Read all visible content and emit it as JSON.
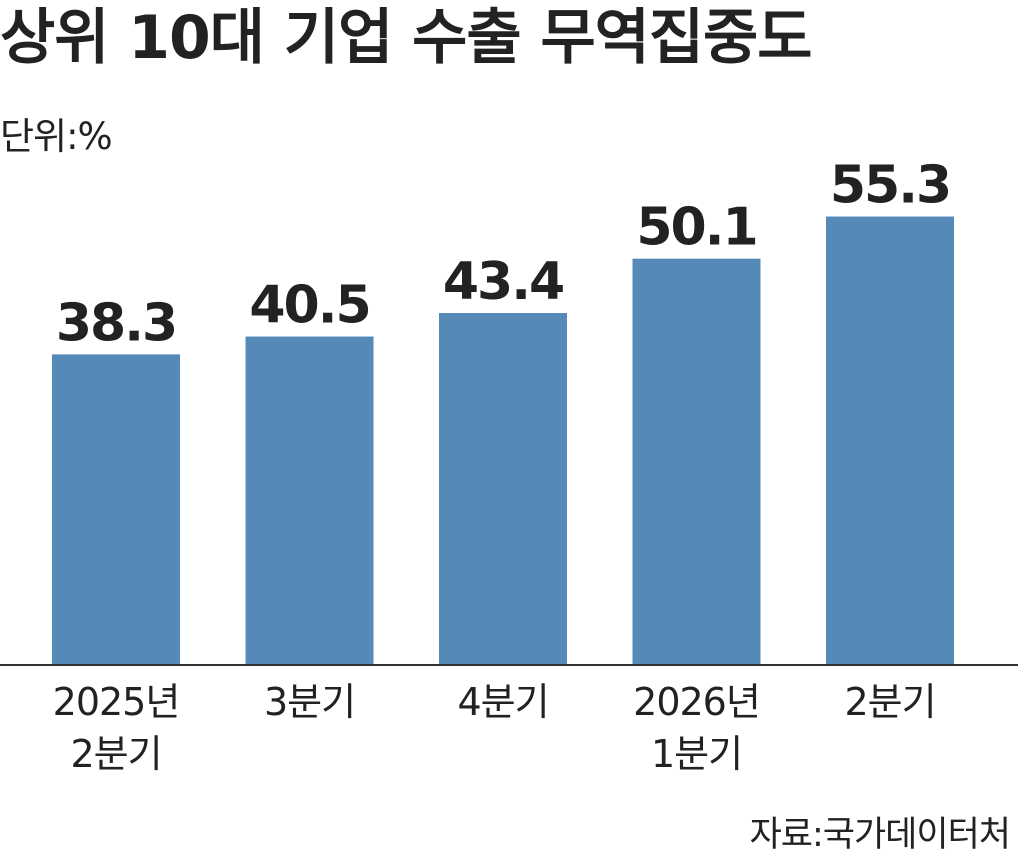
{
  "chart_data": {
    "type": "bar",
    "title": "상위 10대 기업 수출 무역집중도",
    "unit_label": "단위:%",
    "source": "자료:국가데이터처",
    "categories": [
      [
        "2025년",
        "2분기"
      ],
      [
        "3분기"
      ],
      [
        "4분기"
      ],
      [
        "2026년",
        "1분기"
      ],
      [
        "2분기"
      ]
    ],
    "series": [
      {
        "values": [
          38.3,
          40.5,
          43.4,
          50.1,
          55.3
        ]
      }
    ],
    "value_labels": [
      "38.3",
      "40.5",
      "43.4",
      "50.1",
      "55.3"
    ],
    "ylim": [
      0,
      60
    ],
    "grid": false,
    "legend": "none",
    "bar_color": "#5589b8",
    "axis_color": "#333333"
  }
}
